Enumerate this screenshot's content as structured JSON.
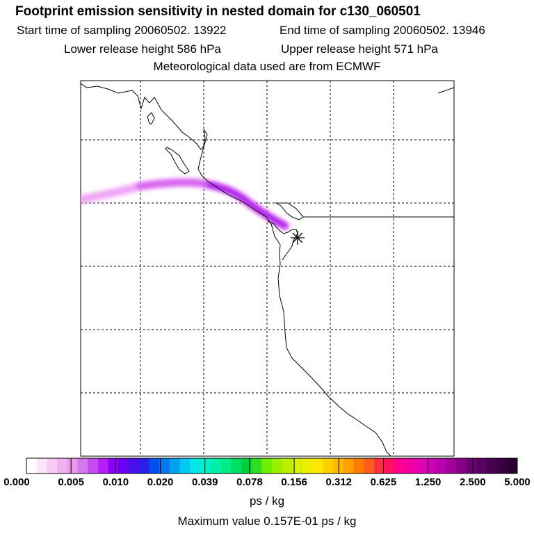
{
  "header": {
    "title": "Footprint emission sensitivity in nested domain for c130_060501",
    "start_sampling": "Start time of sampling 20060502. 13922",
    "end_sampling": "End time of sampling 20060502. 13946",
    "lower_release": "Lower release height  586 hPa",
    "upper_release": "Upper release height  571 hPa",
    "met_data": "Meteorological data used are from ECMWF"
  },
  "chart_data": {
    "type": "heatmap",
    "title": "Footprint emission sensitivity in nested domain for c130_060501",
    "colorbar": {
      "units": "ps / kg",
      "tick_labels": [
        "0.000",
        "0.005",
        "0.010",
        "0.020",
        "0.039",
        "0.078",
        "0.156",
        "0.312",
        "0.625",
        "1.250",
        "2.500",
        "5.000"
      ],
      "colors": [
        "#ffffff",
        "#fbe6fb",
        "#f6ccf6",
        "#f0b0f0",
        "#e59be9",
        "#d777ec",
        "#c84bf0",
        "#b41ff5",
        "#8a00f5",
        "#6a00f0",
        "#4a10ec",
        "#2a20e8",
        "#0050f0",
        "#0078f0",
        "#00a0f0",
        "#00c8f0",
        "#00e8e8",
        "#00f0c8",
        "#00f0a8",
        "#00ec88",
        "#00e060",
        "#00d040",
        "#30e020",
        "#70f000",
        "#98f000",
        "#b8f000",
        "#d8f000",
        "#ecf000",
        "#ffe800",
        "#ffd000",
        "#ffb800",
        "#ffa000",
        "#ff7c00",
        "#ff5c20",
        "#ff3040",
        "#ff1060",
        "#ff0090",
        "#f000a0",
        "#e000b0",
        "#d000b8",
        "#b800b0",
        "#a00098",
        "#880088",
        "#6c0070",
        "#5a0060",
        "#480050",
        "#380040",
        "#2a0030"
      ]
    },
    "plume_max_bin": "0.010",
    "release_site_marker": "asterisk",
    "gridlines": true,
    "max_value_text": "Maximum value  0.157E-01 ps / kg"
  }
}
